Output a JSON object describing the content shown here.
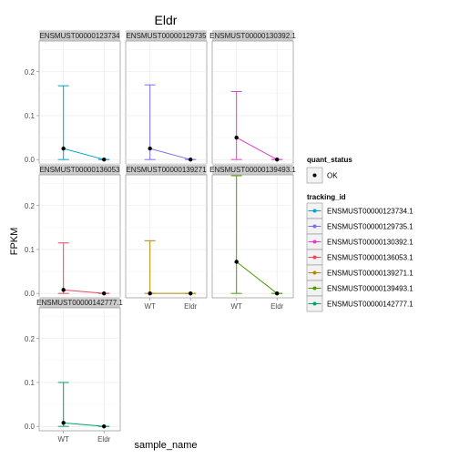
{
  "chart_data": {
    "type": "line",
    "title": "Eldr",
    "xlabel": "sample_name",
    "ylabel": "FPKM",
    "categories": [
      "WT",
      "Eldr"
    ],
    "ylim": [
      -0.01,
      0.27
    ],
    "yticks": [
      0.0,
      0.1,
      0.2
    ],
    "ytick_labels": [
      "0.0",
      "0.1",
      "0.2"
    ],
    "grid": true,
    "facet_layout": "3x3",
    "series": [
      {
        "name": "ENSMUST00000123734.1",
        "strip": "ENSMUST00000123734",
        "color": "#00a5c8",
        "values": [
          0.025,
          0.0
        ],
        "conf_lo": [
          0.0,
          0.0
        ],
        "conf_hi": [
          0.168,
          0.0
        ]
      },
      {
        "name": "ENSMUST00000129735.1",
        "strip": "ENSMUST00000129735",
        "color": "#7a6ff0",
        "values": [
          0.025,
          0.0
        ],
        "conf_lo": [
          0.0,
          0.0
        ],
        "conf_hi": [
          0.17,
          0.0
        ]
      },
      {
        "name": "ENSMUST00000130392.1",
        "strip": "ENSMUST00000130392.1",
        "color": "#e53bc8",
        "values": [
          0.05,
          0.0
        ],
        "conf_lo": [
          0.0,
          0.0
        ],
        "conf_hi": [
          0.155,
          0.0
        ]
      },
      {
        "name": "ENSMUST00000136053.1",
        "strip": "ENSMUST00000136053",
        "color": "#e8495e",
        "values": [
          0.008,
          0.0
        ],
        "conf_lo": [
          0.0,
          0.0
        ],
        "conf_hi": [
          0.115,
          0.0
        ]
      },
      {
        "name": "ENSMUST00000139271.1",
        "strip": "ENSMUST00000139271",
        "color": "#b08a00",
        "values": [
          0.0,
          0.0
        ],
        "conf_lo": [
          0.0,
          0.0
        ],
        "conf_hi": [
          0.12,
          0.0
        ]
      },
      {
        "name": "ENSMUST00000139493.1",
        "strip": "ENSMUST00000139493.1",
        "color": "#4d9a00",
        "values": [
          0.072,
          0.0
        ],
        "conf_lo": [
          0.0,
          0.0
        ],
        "conf_hi": [
          0.268,
          0.0
        ]
      },
      {
        "name": "ENSMUST00000142777.1",
        "strip": "ENSMUST00000142777.1",
        "color": "#00a36e",
        "values": [
          0.008,
          0.0
        ],
        "conf_lo": [
          0.0,
          0.0
        ],
        "conf_hi": [
          0.1,
          0.0
        ]
      }
    ],
    "legend": {
      "placement": "right",
      "quant_status_title": "quant_status",
      "quant_status_items": [
        "OK"
      ],
      "tracking_title": "tracking_id"
    }
  }
}
